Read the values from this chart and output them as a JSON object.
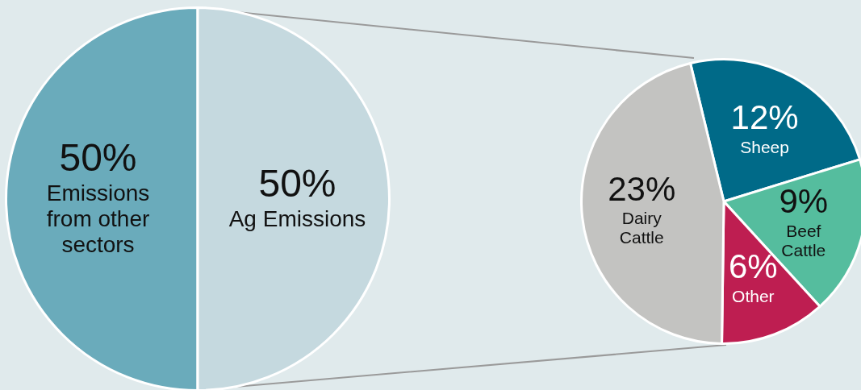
{
  "chart_data": [
    {
      "type": "pie",
      "categories": [
        "Emissions from other sectors",
        "Ag Emissions"
      ],
      "values": [
        50,
        50
      ],
      "colors": [
        "#6aabbb",
        "#c5d9df"
      ],
      "value_labels": [
        "50%",
        "50%"
      ]
    },
    {
      "type": "pie",
      "categories": [
        "Sheep",
        "Beef Cattle",
        "Other",
        "Dairy Cattle"
      ],
      "values": [
        12,
        9,
        6,
        23
      ],
      "colors": [
        "#006a88",
        "#55bd9e",
        "#be1e51",
        "#c3c3c1"
      ],
      "value_labels": [
        "12%",
        "9%",
        "6%",
        "23%"
      ]
    }
  ]
}
